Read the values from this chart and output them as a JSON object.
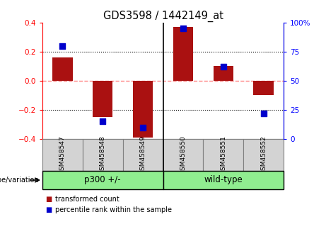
{
  "title": "GDS3598 / 1442149_at",
  "samples": [
    "GSM458547",
    "GSM458548",
    "GSM458549",
    "GSM458550",
    "GSM458551",
    "GSM458552"
  ],
  "bar_values": [
    0.16,
    -0.25,
    -0.39,
    0.37,
    0.1,
    -0.1
  ],
  "percentile_ranks": [
    80,
    15,
    10,
    95,
    62,
    22
  ],
  "group_boundary": 2.5,
  "bar_color": "#AA1111",
  "dot_color": "#0000CC",
  "ylim_left": [
    -0.4,
    0.4
  ],
  "ylim_right": [
    0,
    100
  ],
  "yticks_left": [
    -0.4,
    -0.2,
    0.0,
    0.2,
    0.4
  ],
  "yticks_right": [
    0,
    25,
    50,
    75,
    100
  ],
  "ytick_labels_right": [
    "0",
    "25",
    "50",
    "75",
    "100%"
  ],
  "hline_zero_color": "#FF8888",
  "sample_box_color": "#D3D3D3",
  "genotype_label": "genotype/variation",
  "group_labels": [
    "p300 +/-",
    "wild-type"
  ],
  "group_color": "#90EE90",
  "legend_items": [
    {
      "label": "transformed count",
      "color": "#AA1111"
    },
    {
      "label": "percentile rank within the sample",
      "color": "#0000CC"
    }
  ],
  "bar_width": 0.5
}
